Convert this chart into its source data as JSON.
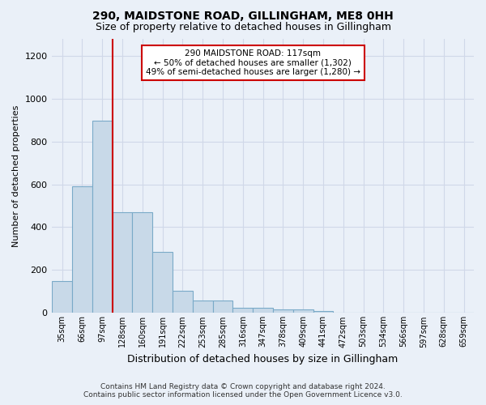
{
  "title1": "290, MAIDSTONE ROAD, GILLINGHAM, ME8 0HH",
  "title2": "Size of property relative to detached houses in Gillingham",
  "xlabel": "Distribution of detached houses by size in Gillingham",
  "ylabel": "Number of detached properties",
  "footer1": "Contains HM Land Registry data © Crown copyright and database right 2024.",
  "footer2": "Contains public sector information licensed under the Open Government Licence v3.0.",
  "bar_labels": [
    "35sqm",
    "66sqm",
    "97sqm",
    "128sqm",
    "160sqm",
    "191sqm",
    "222sqm",
    "253sqm",
    "285sqm",
    "316sqm",
    "347sqm",
    "378sqm",
    "409sqm",
    "441sqm",
    "472sqm",
    "503sqm",
    "534sqm",
    "566sqm",
    "597sqm",
    "628sqm",
    "659sqm"
  ],
  "bar_values": [
    150,
    590,
    895,
    470,
    470,
    285,
    105,
    60,
    60,
    25,
    25,
    15,
    15,
    10,
    0,
    0,
    0,
    0,
    0,
    0,
    0
  ],
  "bar_color": "#c8d9e8",
  "bar_edge_color": "#7aaac8",
  "grid_color": "#d0d8e8",
  "background_color": "#eaf0f8",
  "vline_color": "#cc0000",
  "annotation_text": "290 MAIDSTONE ROAD: 117sqm\n← 50% of detached houses are smaller (1,302)\n49% of semi-detached houses are larger (1,280) →",
  "annotation_box_color": "#ffffff",
  "annotation_border_color": "#cc0000",
  "ylim_max": 1280,
  "yticks": [
    0,
    200,
    400,
    600,
    800,
    1000,
    1200
  ]
}
